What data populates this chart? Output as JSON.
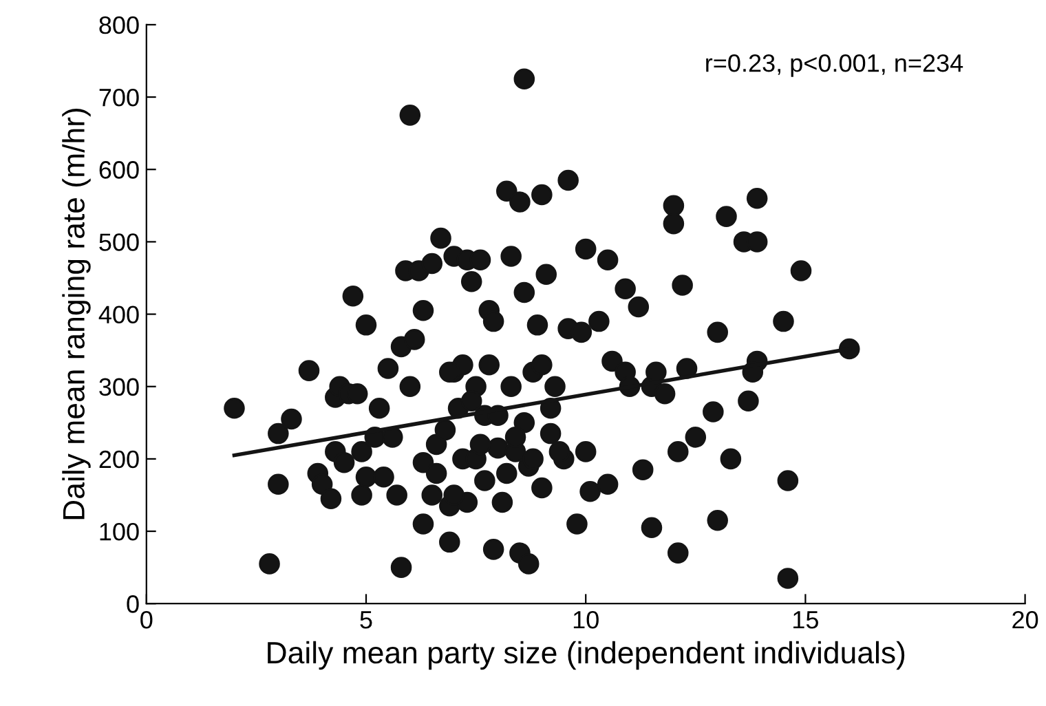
{
  "chart_data": {
    "type": "scatter",
    "xlabel": "Daily mean party size (independent individuals)",
    "ylabel": "Daily mean ranging rate (m/hr)",
    "annotations": [
      "r=0.23, p<0.001, n=234"
    ],
    "xlim": [
      0,
      20
    ],
    "xticks": [
      0,
      5,
      10,
      15,
      20
    ],
    "ylim": [
      0,
      800
    ],
    "yticks": [
      0,
      100,
      200,
      300,
      400,
      500,
      600,
      700,
      800
    ],
    "grid": false,
    "legend": false,
    "marker": "circle",
    "series": [
      {
        "color": "#141414",
        "x": [
          2.0,
          2.8,
          3.0,
          3.0,
          3.3,
          3.7,
          3.9,
          4.0,
          4.2,
          4.3,
          4.4,
          4.3,
          4.5,
          4.6,
          4.7,
          4.8,
          4.9,
          5.0,
          4.9,
          5.0,
          5.2,
          5.3,
          5.5,
          5.6,
          5.4,
          5.7,
          5.8,
          5.8,
          5.9,
          6.0,
          6.0,
          6.1,
          6.2,
          6.3,
          6.3,
          6.3,
          6.5,
          6.6,
          6.6,
          6.7,
          6.8,
          6.9,
          7.0,
          7.0,
          6.9,
          7.1,
          7.2,
          7.3,
          7.2,
          7.3,
          7.4,
          7.5,
          7.6,
          7.7,
          7.7,
          7.8,
          7.8,
          7.9,
          8.0,
          8.1,
          7.9,
          8.2,
          8.3,
          8.3,
          8.4,
          8.5,
          8.6,
          8.6,
          8.6,
          8.7,
          8.5,
          8.7,
          8.8,
          8.9,
          9.0,
          9.0,
          9.0,
          9.1,
          9.2,
          9.3,
          9.5,
          9.6,
          9.6,
          9.8,
          9.9,
          10.0,
          10.0,
          10.1,
          10.3,
          10.5,
          10.5,
          10.6,
          10.9,
          10.9,
          11.0,
          11.2,
          11.3,
          11.5,
          11.5,
          11.6,
          11.8,
          12.0,
          12.0,
          12.1,
          12.1,
          12.2,
          12.3,
          12.5,
          12.9,
          13.0,
          13.0,
          13.2,
          13.3,
          13.6,
          13.7,
          13.9,
          13.9,
          13.9,
          13.8,
          14.5,
          14.6,
          14.6,
          14.9,
          6.5,
          7.0,
          7.5,
          8.0,
          8.4,
          9.2,
          9.4,
          8.8,
          7.6,
          6.9,
          7.4,
          8.2,
          16.0
        ],
        "values": [
          270,
          55,
          235,
          165,
          255,
          322,
          180,
          165,
          145,
          285,
          300,
          210,
          195,
          290,
          425,
          290,
          150,
          385,
          210,
          175,
          230,
          270,
          325,
          230,
          175,
          150,
          355,
          50,
          460,
          675,
          300,
          365,
          460,
          405,
          195,
          110,
          470,
          220,
          180,
          505,
          240,
          135,
          480,
          320,
          85,
          270,
          330,
          475,
          200,
          140,
          445,
          300,
          475,
          260,
          170,
          405,
          330,
          390,
          215,
          140,
          75,
          570,
          480,
          300,
          210,
          555,
          725,
          430,
          250,
          190,
          70,
          55,
          320,
          385,
          565,
          330,
          160,
          455,
          235,
          300,
          200,
          585,
          380,
          110,
          375,
          490,
          210,
          155,
          390,
          475,
          165,
          335,
          435,
          320,
          300,
          410,
          185,
          300,
          105,
          320,
          290,
          550,
          525,
          70,
          210,
          440,
          325,
          230,
          265,
          375,
          115,
          535,
          200,
          500,
          280,
          560,
          500,
          335,
          320,
          390,
          170,
          35,
          460,
          150,
          150,
          200,
          260,
          230,
          270,
          210,
          200,
          220,
          320,
          280,
          180,
          352
        ]
      },
      {
        "type": "line",
        "color": "#141414",
        "marker": "none",
        "x": [
          2,
          16
        ],
        "values": [
          205,
          352
        ]
      }
    ]
  }
}
